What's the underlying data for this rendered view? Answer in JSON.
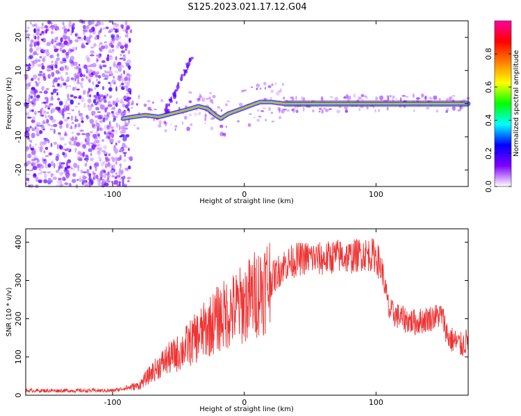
{
  "title": "S125.2023.021.17.12.G04",
  "chart_data": [
    {
      "type": "heatmap",
      "xlabel": "Height of straight line (km)",
      "ylabel": "Frequency (Hz)",
      "xlim": [
        -166,
        170
      ],
      "ylim": [
        -25,
        25
      ],
      "x_ticks": [
        -100,
        0,
        100
      ],
      "y_ticks": [
        -20,
        -10,
        0,
        10,
        20
      ],
      "colorbar": {
        "label": "Normalized spectral amplitude",
        "range": [
          0,
          1
        ],
        "ticks": [
          0.0,
          0.2,
          0.4,
          0.6,
          0.8
        ],
        "colors": [
          "#ffffff",
          "#8000ff",
          "#0000ff",
          "#00ffff",
          "#00ff00",
          "#ffff00",
          "#ff8000",
          "#ff0000",
          "#ff00a0"
        ]
      },
      "ridge": [
        {
          "x": -92,
          "y": -4.5
        },
        {
          "x": -85,
          "y": -4.0
        },
        {
          "x": -75,
          "y": -3.5
        },
        {
          "x": -65,
          "y": -4.0
        },
        {
          "x": -55,
          "y": -3.0
        },
        {
          "x": -45,
          "y": -2.0
        },
        {
          "x": -35,
          "y": -0.8
        },
        {
          "x": -28,
          "y": -1.5
        },
        {
          "x": -22,
          "y": -3.5
        },
        {
          "x": -18,
          "y": -4.5
        },
        {
          "x": -12,
          "y": -3.0
        },
        {
          "x": -5,
          "y": -2.0
        },
        {
          "x": 5,
          "y": -0.5
        },
        {
          "x": 12,
          "y": 0.5
        },
        {
          "x": 20,
          "y": 0.5
        },
        {
          "x": 30,
          "y": 0.0
        },
        {
          "x": 170,
          "y": 0.0
        }
      ]
    },
    {
      "type": "line",
      "xlabel": "Height of straight line (km)",
      "ylabel": "SNR (10 * v/v)",
      "xlim": [
        -166,
        170
      ],
      "ylim": [
        0,
        435
      ],
      "x_ticks": [
        -100,
        0,
        100
      ],
      "y_ticks": [
        0,
        100,
        200,
        300,
        400
      ],
      "color": "#ee3333",
      "envelope": [
        {
          "x": -166,
          "y": 12
        },
        {
          "x": -100,
          "y": 12
        },
        {
          "x": -80,
          "y": 25
        },
        {
          "x": -70,
          "y": 60
        },
        {
          "x": -60,
          "y": 90
        },
        {
          "x": -50,
          "y": 110
        },
        {
          "x": -40,
          "y": 140
        },
        {
          "x": -30,
          "y": 170
        },
        {
          "x": -20,
          "y": 200
        },
        {
          "x": -10,
          "y": 220
        },
        {
          "x": 0,
          "y": 240
        },
        {
          "x": 10,
          "y": 270
        },
        {
          "x": 20,
          "y": 300
        },
        {
          "x": 30,
          "y": 340
        },
        {
          "x": 40,
          "y": 355
        },
        {
          "x": 50,
          "y": 360
        },
        {
          "x": 60,
          "y": 355
        },
        {
          "x": 70,
          "y": 365
        },
        {
          "x": 80,
          "y": 360
        },
        {
          "x": 90,
          "y": 370
        },
        {
          "x": 100,
          "y": 365
        },
        {
          "x": 105,
          "y": 320
        },
        {
          "x": 110,
          "y": 220
        },
        {
          "x": 120,
          "y": 200
        },
        {
          "x": 130,
          "y": 190
        },
        {
          "x": 140,
          "y": 200
        },
        {
          "x": 150,
          "y": 210
        },
        {
          "x": 155,
          "y": 150
        },
        {
          "x": 165,
          "y": 130
        },
        {
          "x": 170,
          "y": 145
        }
      ]
    }
  ]
}
